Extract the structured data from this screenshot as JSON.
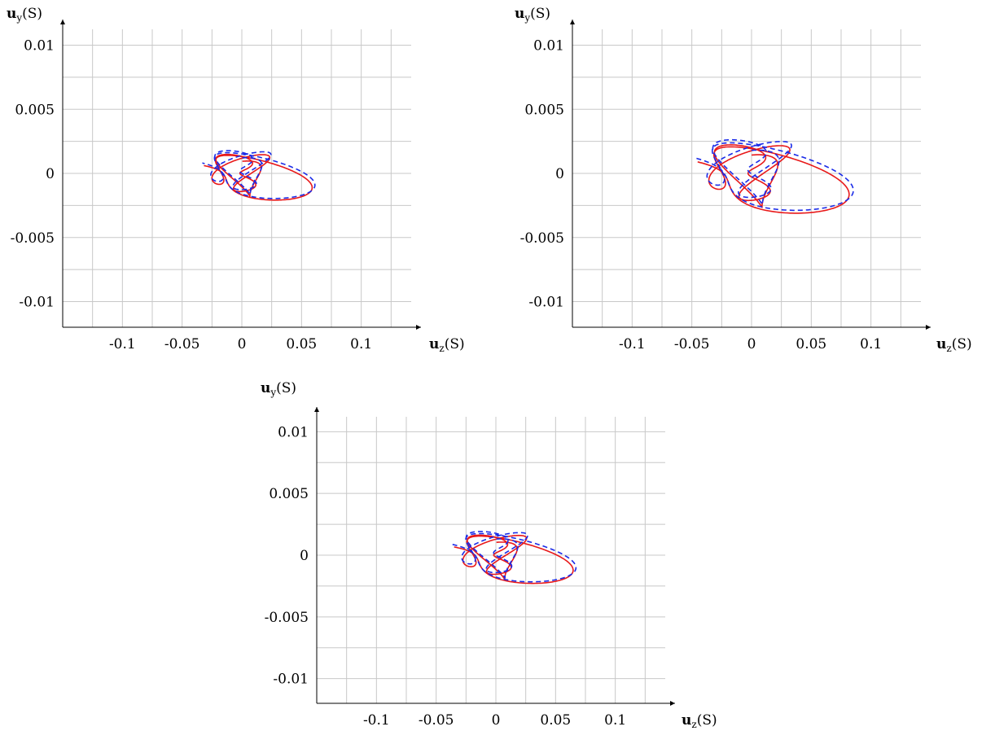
{
  "chart_data": [
    {
      "type": "line",
      "xlabel": "u_z(S)",
      "ylabel": "u_y(S)",
      "xticks": [
        -0.1,
        -0.05,
        0,
        0.05,
        0.1
      ],
      "xtick_labels": [
        "-0.1",
        "-0.05",
        "0",
        "0.05",
        "0.1"
      ],
      "yticks": [
        -0.01,
        -0.005,
        0,
        0.005,
        0.01
      ],
      "ytick_labels": [
        "-0.01",
        "-0.005",
        "0",
        "0.005",
        "0.01"
      ],
      "xlim": [
        -0.15,
        0.15
      ],
      "ylim": [
        -0.012,
        0.012
      ],
      "grid": true,
      "series": [
        {
          "color": "#e8191a",
          "dash": "solid",
          "params": {
            "a": 0.05,
            "b": 0.045,
            "c": 0.0041,
            "d": 0.0031,
            "z0": 0.0005,
            "y0": 0.0,
            "turns": 3.2
          }
        },
        {
          "color": "#1a2be8",
          "dash": "dashed",
          "params": {
            "a": 0.052,
            "b": 0.046,
            "c": 0.0044,
            "d": 0.003,
            "z0": 0.0005,
            "y0": 0.0002,
            "turns": 3.2
          }
        }
      ]
    },
    {
      "type": "line",
      "xlabel": "u_z(S)",
      "ylabel": "u_y(S)",
      "xticks": [
        -0.1,
        -0.05,
        0,
        0.05,
        0.1
      ],
      "xtick_labels": [
        "-0.1",
        "-0.05",
        "0",
        "0.05",
        "0.1"
      ],
      "yticks": [
        -0.01,
        -0.005,
        0,
        0.005,
        0.01
      ],
      "ytick_labels": [
        "-0.01",
        "-0.005",
        "0",
        "0.005",
        "0.01"
      ],
      "xlim": [
        -0.15,
        0.15
      ],
      "ylim": [
        -0.012,
        0.012
      ],
      "grid": true,
      "series": [
        {
          "color": "#e8191a",
          "dash": "solid",
          "params": {
            "a": 0.07,
            "b": 0.065,
            "c": 0.0062,
            "d": 0.0045,
            "z0": 0.0,
            "y0": 0.0,
            "turns": 3.2
          }
        },
        {
          "color": "#1a2be8",
          "dash": "dashed",
          "params": {
            "a": 0.073,
            "b": 0.066,
            "c": 0.0065,
            "d": 0.0044,
            "z0": 0.0,
            "y0": 0.0003,
            "turns": 3.2
          }
        }
      ]
    },
    {
      "type": "line",
      "xlabel": "u_z(S)",
      "ylabel": "u_y(S)",
      "xticks": [
        -0.1,
        -0.05,
        0,
        0.05,
        0.1
      ],
      "xtick_labels": [
        "-0.1",
        "-0.05",
        "0",
        "0.05",
        "0.1"
      ],
      "yticks": [
        -0.01,
        -0.005,
        0,
        0.005,
        0.01
      ],
      "ytick_labels": [
        "-0.01",
        "-0.005",
        "0",
        "0.005",
        "0.01"
      ],
      "xlim": [
        -0.15,
        0.15
      ],
      "ylim": [
        -0.012,
        0.012
      ],
      "grid": true,
      "series": [
        {
          "color": "#e8191a",
          "dash": "solid",
          "params": {
            "a": 0.055,
            "b": 0.05,
            "c": 0.0045,
            "d": 0.0034,
            "z0": 0.0005,
            "y0": 0.0,
            "turns": 3.2
          }
        },
        {
          "color": "#1a2be8",
          "dash": "dashed",
          "params": {
            "a": 0.057,
            "b": 0.051,
            "c": 0.0048,
            "d": 0.0033,
            "z0": 0.0005,
            "y0": 0.0002,
            "turns": 3.2
          }
        }
      ]
    }
  ]
}
